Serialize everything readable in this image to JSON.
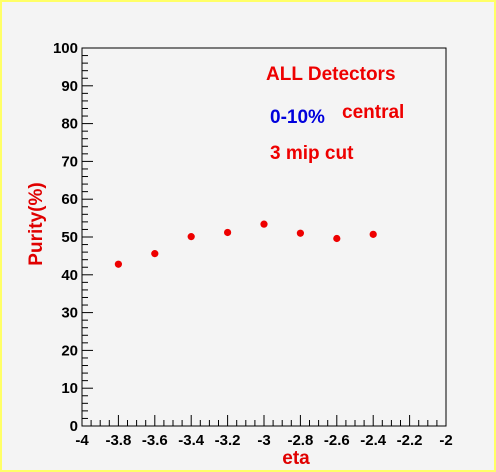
{
  "chart_data": {
    "type": "scatter",
    "title": "",
    "xlabel": "eta",
    "ylabel": "Purity(%)",
    "xlim": [
      -4,
      -2
    ],
    "ylim": [
      0,
      100
    ],
    "x_ticks": [
      "-4",
      "-3.8",
      "-3.6",
      "-3.4",
      "-3.2",
      "-3",
      "-2.8",
      "-2.6",
      "-2.4",
      "-2.2",
      "-2"
    ],
    "y_ticks": [
      "0",
      "10",
      "20",
      "30",
      "40",
      "50",
      "60",
      "70",
      "80",
      "90",
      "100"
    ],
    "grid": false,
    "legend": "none",
    "series": [
      {
        "x": [
          -3.8,
          -3.6,
          -3.4,
          -3.2,
          -3.0,
          -2.8,
          -2.6,
          -2.4
        ],
        "y": [
          42.8,
          45.6,
          50.1,
          51.2,
          53.4,
          51.0,
          49.6,
          50.7
        ],
        "color": "#ee0000"
      }
    ],
    "annotations": [
      {
        "text": "ALL Detectors",
        "color": "#ee0000"
      },
      {
        "text": "0-10%",
        "color": "#0000dd"
      },
      {
        "text": "central",
        "color": "#ee0000"
      },
      {
        "text": "3 mip cut",
        "color": "#ee0000"
      }
    ]
  }
}
